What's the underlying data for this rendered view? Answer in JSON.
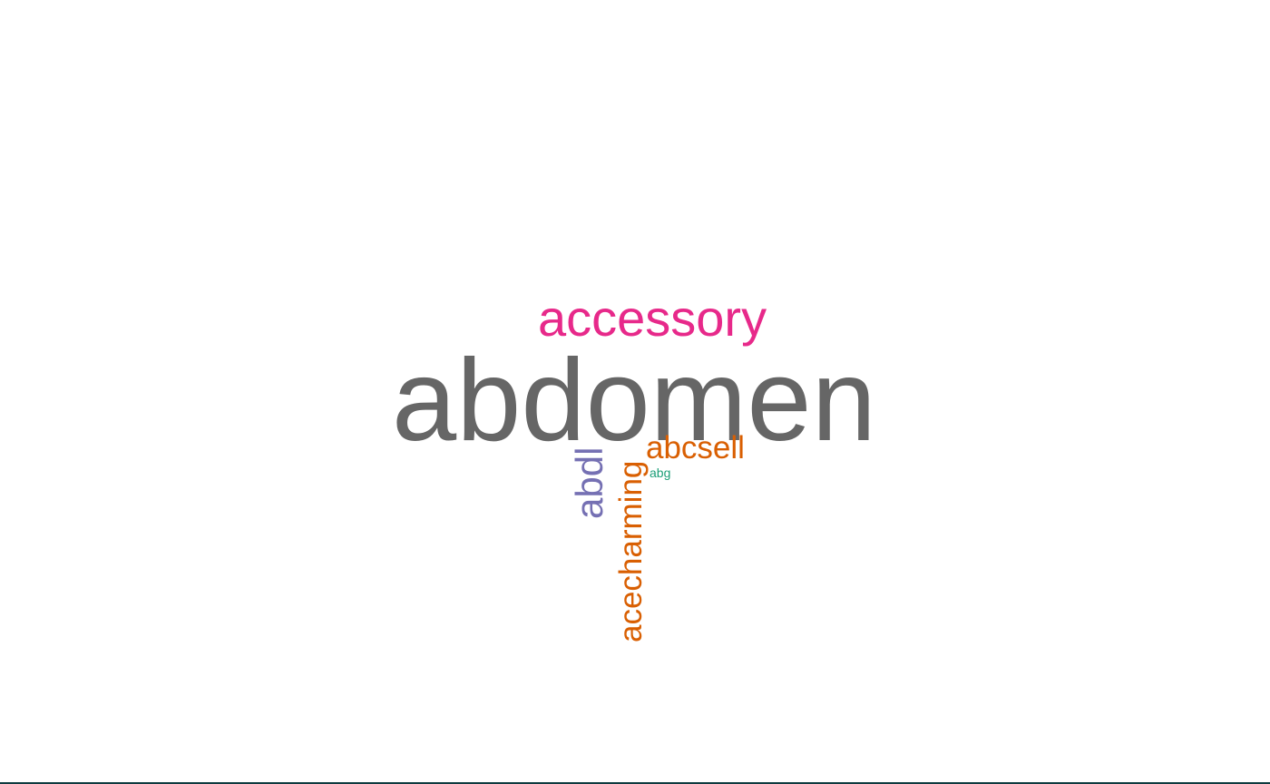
{
  "words": [
    {
      "text": "abdomen",
      "color": "#666666",
      "orientation": "horizontal"
    },
    {
      "text": "accessory",
      "color": "#e7298a",
      "orientation": "horizontal"
    },
    {
      "text": "abcsell",
      "color": "#d95f02",
      "orientation": "horizontal"
    },
    {
      "text": "abg",
      "color": "#1b9e77",
      "orientation": "horizontal"
    },
    {
      "text": "abdl",
      "color": "#7570b3",
      "orientation": "vertical"
    },
    {
      "text": "acecharming",
      "color": "#d95f02",
      "orientation": "vertical"
    }
  ]
}
